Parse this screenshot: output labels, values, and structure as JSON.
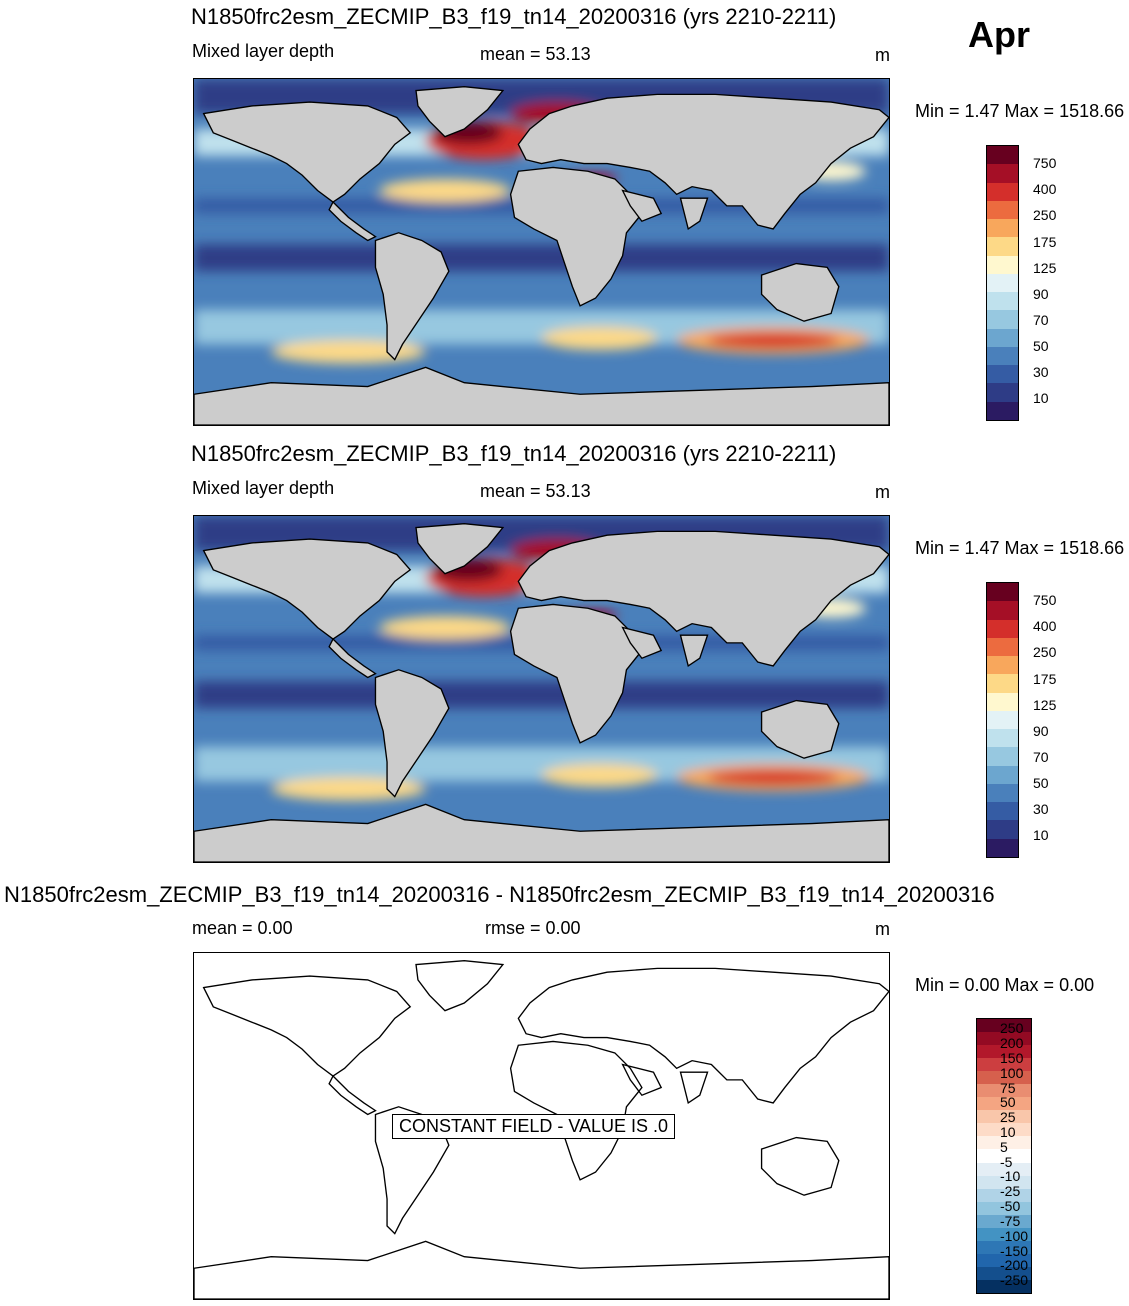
{
  "month": "Apr",
  "panels": [
    {
      "title": "N1850frc2esm_ZECMIP_B3_f19_tn14_20200316 (yrs 2210-2211)",
      "left_label": "Mixed layer depth",
      "center_label": "mean =  53.13",
      "units": "m",
      "minmax": "Min =   1.47 Max = 1518.66",
      "colorbar": {
        "labels": [
          "750",
          "400",
          "250",
          "175",
          "125",
          "90",
          "70",
          "50",
          "30",
          "10"
        ],
        "colors": [
          "#67001f",
          "#a50f26",
          "#d42f2b",
          "#ec6b3f",
          "#f8a75c",
          "#fdd987",
          "#fff8cf",
          "#e3f2f6",
          "#bfe1ed",
          "#97c8e0",
          "#6ca6cf",
          "#4a80bb",
          "#355ca4",
          "#2e3c86",
          "#2b1b62"
        ]
      }
    },
    {
      "title": "N1850frc2esm_ZECMIP_B3_f19_tn14_20200316 (yrs 2210-2211)",
      "left_label": "Mixed layer depth",
      "center_label": "mean =  53.13",
      "units": "m",
      "minmax": "Min =   1.47 Max = 1518.66",
      "colorbar": {
        "labels": [
          "750",
          "400",
          "250",
          "175",
          "125",
          "90",
          "70",
          "50",
          "30",
          "10"
        ],
        "colors": [
          "#67001f",
          "#a50f26",
          "#d42f2b",
          "#ec6b3f",
          "#f8a75c",
          "#fdd987",
          "#fff8cf",
          "#e3f2f6",
          "#bfe1ed",
          "#97c8e0",
          "#6ca6cf",
          "#4a80bb",
          "#355ca4",
          "#2e3c86",
          "#2b1b62"
        ]
      }
    },
    {
      "title": "N1850frc2esm_ZECMIP_B3_f19_tn14_20200316 - N1850frc2esm_ZECMIP_B3_f19_tn14_20200316",
      "left_label": "mean =   0.00",
      "center_label": "rmse =   0.00",
      "units": "m",
      "minmax": "Min =   0.00 Max =   0.00",
      "constant_field": "CONSTANT FIELD - VALUE IS .0",
      "colorbar": {
        "labels": [
          "250",
          "200",
          "150",
          "100",
          "75",
          "50",
          "25",
          "10",
          "5",
          "-5",
          "-10",
          "-25",
          "-50",
          "-75",
          "-100",
          "-150",
          "-200",
          "-250"
        ],
        "colors": [
          "#67001f",
          "#930a23",
          "#b2182b",
          "#cc3e40",
          "#d6604d",
          "#e98d71",
          "#f4a582",
          "#f9c6aa",
          "#fddbc7",
          "#fef0e6",
          "#ffffff",
          "#e4eef5",
          "#d1e5f0",
          "#b0d3e7",
          "#92c5de",
          "#6aa9cf",
          "#4393c3",
          "#2e77b5",
          "#2166ac",
          "#144f8d",
          "#053061"
        ]
      }
    }
  ]
}
